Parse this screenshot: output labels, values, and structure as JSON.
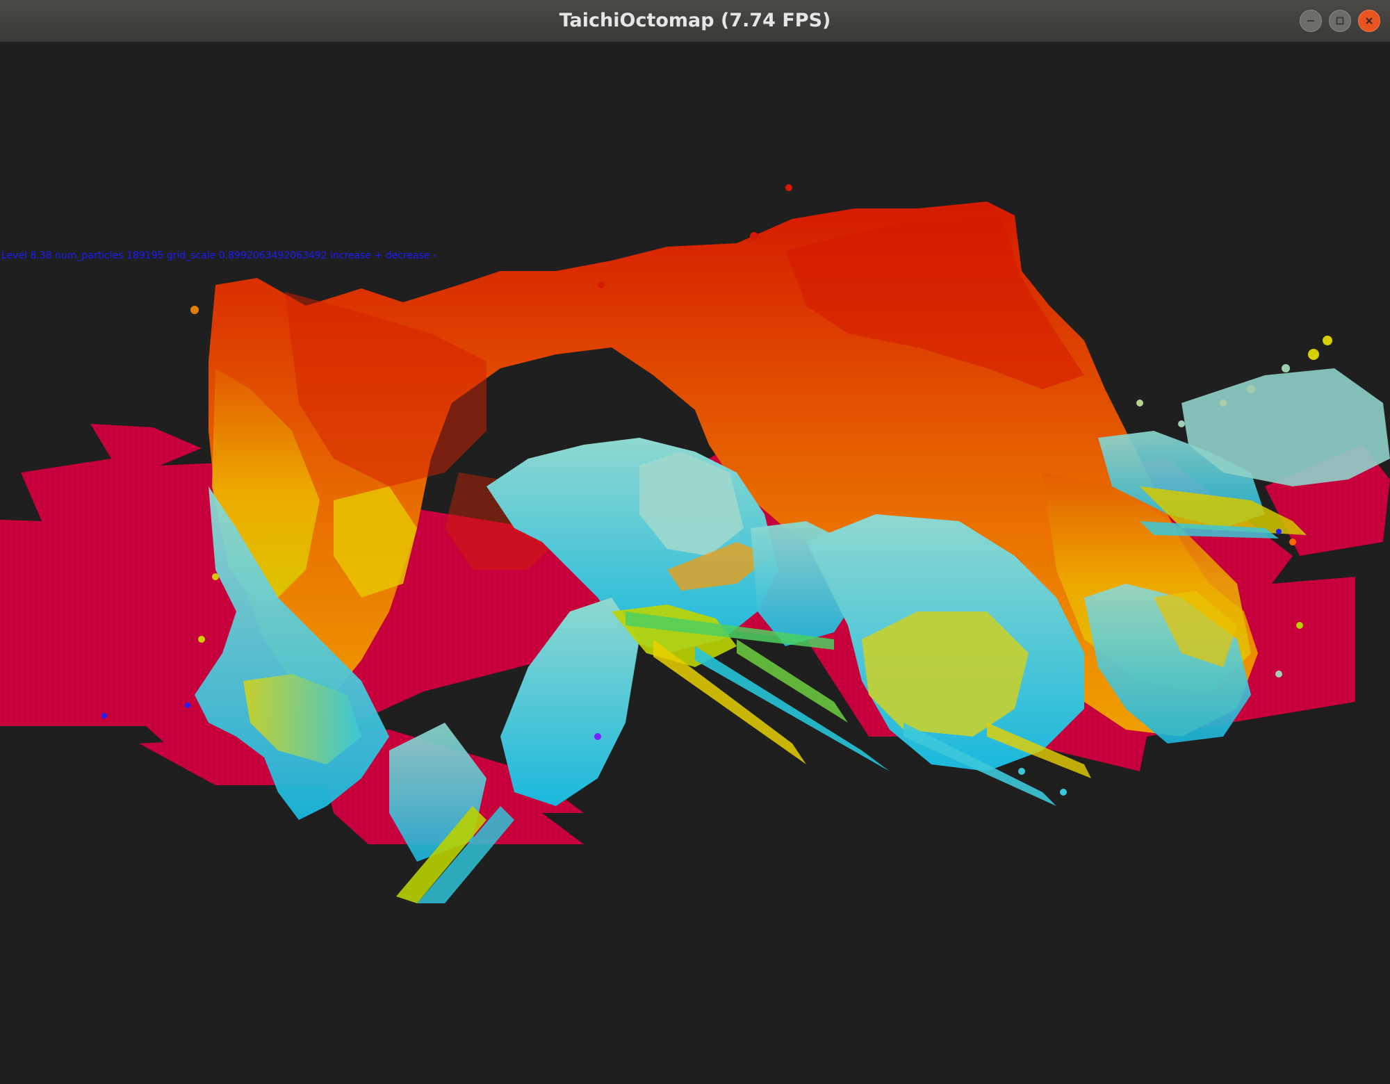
{
  "window": {
    "title": "TaichiOctomap (7.74 FPS)",
    "controls": {
      "minimize_icon": "minimize-icon",
      "maximize_icon": "maximize-icon",
      "close_icon": "close-icon"
    }
  },
  "hud": {
    "text": "Level 8.38 num_particles 189195 grid_scale 0.8992063492063492 increase + decrease -"
  },
  "colors": {
    "background": "#1f1f1f",
    "ground": "#c8003c",
    "titlebar": "#3f3e3b",
    "close": "#e95420",
    "hud_text": "#1c1cff"
  }
}
